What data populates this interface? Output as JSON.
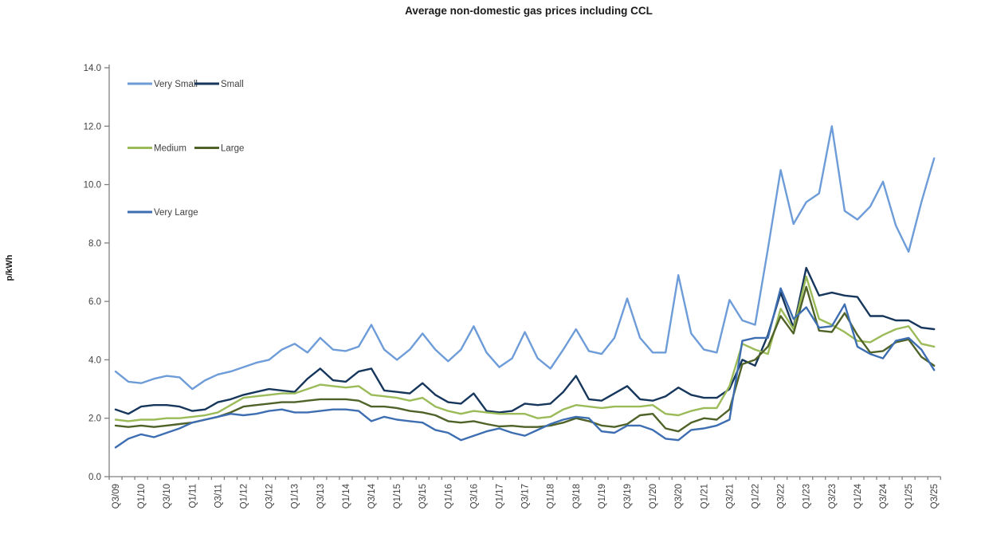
{
  "chart_data": {
    "type": "line",
    "title": "Average non-domestic gas prices including CCL",
    "ylabel": "p/kWh",
    "ylim": [
      0.0,
      14.0
    ],
    "ytick_step": 2.0,
    "ytick_labels": [
      "0.0",
      "2.0",
      "4.0",
      "6.0",
      "8.0",
      "10.0",
      "12.0",
      "14.0"
    ],
    "grid": false,
    "legend_position": "inside-top-left",
    "x_tick_label_every": 2,
    "x_categories": [
      "Q3/09",
      "Q4/09",
      "Q1/10",
      "Q2/10",
      "Q3/10",
      "Q4/10",
      "Q1/11",
      "Q2/11",
      "Q3/11",
      "Q4/11",
      "Q1/12",
      "Q2/12",
      "Q3/12",
      "Q4/12",
      "Q1/13",
      "Q2/13",
      "Q3/13",
      "Q4/13",
      "Q1/14",
      "Q2/14",
      "Q3/14",
      "Q4/14",
      "Q1/15",
      "Q2/15",
      "Q3/15",
      "Q4/15",
      "Q1/16",
      "Q2/16",
      "Q3/16",
      "Q4/16",
      "Q1/17",
      "Q2/17",
      "Q3/17",
      "Q4/17",
      "Q1/18",
      "Q2/18",
      "Q3/18",
      "Q4/18",
      "Q1/19",
      "Q2/19",
      "Q3/19",
      "Q4/19",
      "Q1/20",
      "Q2/20",
      "Q3/20",
      "Q4/20",
      "Q1/21",
      "Q2/21",
      "Q3/21",
      "Q4/21",
      "Q1/22",
      "Q2/22",
      "Q3/22",
      "Q4/22",
      "Q1/23",
      "Q2/23",
      "Q3/23",
      "Q4/23",
      "Q1/24",
      "Q2/24",
      "Q3/24",
      "Q4/24",
      "Q1/25",
      "Q2/25",
      "Q3/25"
    ],
    "series": [
      {
        "name": "Very Small",
        "color": "#6D9CD8",
        "values": [
          3.6,
          3.25,
          3.2,
          3.35,
          3.45,
          3.4,
          3.0,
          3.3,
          3.5,
          3.6,
          3.75,
          3.9,
          4.0,
          4.35,
          4.55,
          4.25,
          4.75,
          4.35,
          4.3,
          4.45,
          5.2,
          4.35,
          4.0,
          4.35,
          4.9,
          4.35,
          3.95,
          4.35,
          5.15,
          4.25,
          3.75,
          4.05,
          4.95,
          4.05,
          3.7,
          4.35,
          5.05,
          4.3,
          4.2,
          4.75,
          6.1,
          4.75,
          4.25,
          4.25,
          6.9,
          4.9,
          4.35,
          4.25,
          6.05,
          5.35,
          5.2,
          7.8,
          10.5,
          8.65,
          9.4,
          9.7,
          12.0,
          9.1,
          8.8,
          9.25,
          10.1,
          8.6,
          7.7,
          9.4,
          10.9
        ]
      },
      {
        "name": "Small",
        "color": "#16365C",
        "values": [
          2.3,
          2.15,
          2.4,
          2.45,
          2.45,
          2.4,
          2.25,
          2.3,
          2.55,
          2.65,
          2.8,
          2.9,
          3.0,
          2.95,
          2.9,
          3.35,
          3.7,
          3.3,
          3.25,
          3.6,
          3.7,
          2.95,
          2.9,
          2.85,
          3.2,
          2.8,
          2.55,
          2.5,
          2.85,
          2.25,
          2.2,
          2.25,
          2.5,
          2.45,
          2.5,
          2.9,
          3.45,
          2.65,
          2.6,
          2.85,
          3.1,
          2.65,
          2.6,
          2.75,
          3.05,
          2.8,
          2.7,
          2.7,
          3.0,
          4.0,
          3.8,
          4.85,
          6.3,
          5.1,
          7.15,
          6.2,
          6.3,
          6.2,
          6.15,
          5.5,
          5.5,
          5.35,
          5.35,
          5.1,
          5.05
        ]
      },
      {
        "name": "Medium",
        "color": "#9BBB59",
        "values": [
          1.95,
          1.9,
          1.95,
          1.95,
          2.0,
          2.0,
          2.05,
          2.1,
          2.2,
          2.45,
          2.7,
          2.75,
          2.8,
          2.85,
          2.85,
          3.0,
          3.15,
          3.1,
          3.05,
          3.1,
          2.8,
          2.75,
          2.7,
          2.6,
          2.7,
          2.4,
          2.25,
          2.15,
          2.25,
          2.2,
          2.15,
          2.15,
          2.15,
          2.0,
          2.05,
          2.3,
          2.45,
          2.4,
          2.35,
          2.4,
          2.4,
          2.4,
          2.45,
          2.15,
          2.1,
          2.25,
          2.35,
          2.35,
          3.1,
          4.55,
          4.35,
          4.2,
          5.75,
          5.05,
          6.85,
          5.4,
          5.2,
          4.95,
          4.65,
          4.6,
          4.85,
          5.05,
          5.15,
          4.55,
          4.45
        ]
      },
      {
        "name": "Large",
        "color": "#4F6228",
        "values": [
          1.75,
          1.7,
          1.75,
          1.7,
          1.75,
          1.8,
          1.85,
          1.95,
          2.05,
          2.2,
          2.4,
          2.45,
          2.5,
          2.55,
          2.55,
          2.6,
          2.65,
          2.65,
          2.65,
          2.6,
          2.4,
          2.4,
          2.35,
          2.25,
          2.2,
          2.1,
          1.9,
          1.85,
          1.9,
          1.8,
          1.72,
          1.74,
          1.7,
          1.7,
          1.75,
          1.85,
          2.0,
          1.9,
          1.75,
          1.7,
          1.8,
          2.1,
          2.15,
          1.65,
          1.55,
          1.85,
          2.0,
          1.95,
          2.3,
          3.85,
          4.0,
          4.45,
          5.5,
          4.9,
          6.5,
          5.0,
          4.95,
          5.6,
          4.85,
          4.25,
          4.3,
          4.6,
          4.7,
          4.1,
          3.8
        ]
      },
      {
        "name": "Very Large",
        "color": "#3E6EB2",
        "values": [
          1.0,
          1.3,
          1.45,
          1.35,
          1.5,
          1.65,
          1.85,
          1.95,
          2.05,
          2.15,
          2.1,
          2.15,
          2.25,
          2.3,
          2.2,
          2.2,
          2.25,
          2.3,
          2.3,
          2.25,
          1.9,
          2.05,
          1.95,
          1.9,
          1.85,
          1.6,
          1.5,
          1.25,
          1.4,
          1.55,
          1.65,
          1.5,
          1.4,
          1.6,
          1.8,
          1.95,
          2.05,
          2.0,
          1.55,
          1.5,
          1.75,
          1.75,
          1.6,
          1.3,
          1.25,
          1.6,
          1.65,
          1.75,
          1.95,
          4.65,
          4.75,
          4.75,
          6.45,
          5.4,
          5.8,
          5.1,
          5.15,
          5.9,
          4.45,
          4.2,
          4.05,
          4.65,
          4.75,
          4.35,
          3.65
        ]
      }
    ]
  }
}
